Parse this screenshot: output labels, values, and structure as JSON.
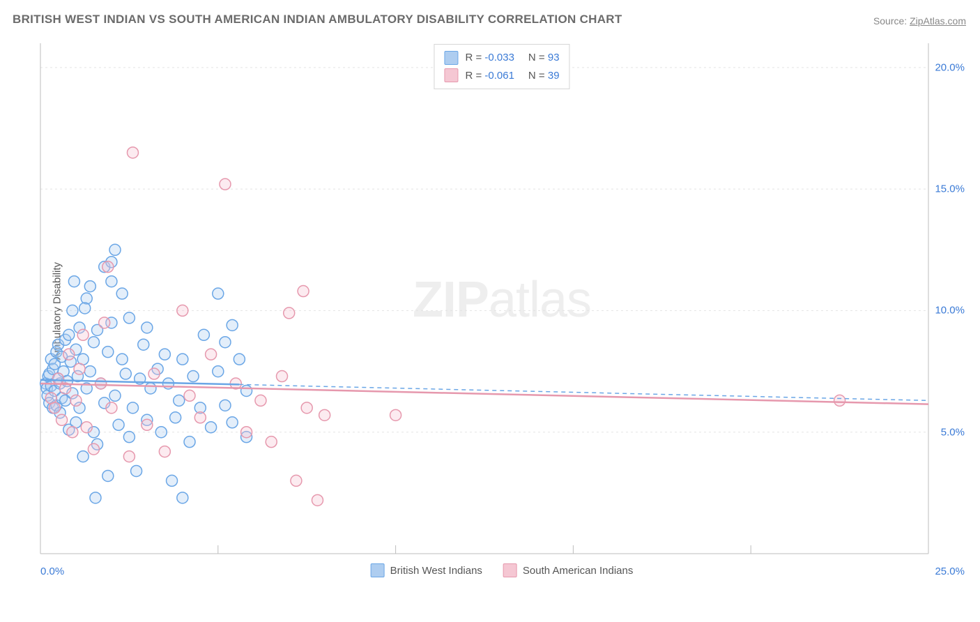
{
  "title": "BRITISH WEST INDIAN VS SOUTH AMERICAN INDIAN AMBULATORY DISABILITY CORRELATION CHART",
  "source_label": "Source:",
  "source_name": "ZipAtlas.com",
  "y_axis_label": "Ambulatory Disability",
  "watermark_bold": "ZIP",
  "watermark_rest": "atlas",
  "chart": {
    "type": "scatter",
    "xlim": [
      0,
      25
    ],
    "ylim": [
      0,
      21
    ],
    "x_ticks": [
      0,
      5,
      10,
      15,
      20,
      25
    ],
    "x_tick_labels": [
      "0.0%",
      "",
      "",
      "",
      "",
      "25.0%"
    ],
    "y_ticks": [
      5,
      10,
      15,
      20
    ],
    "y_tick_labels": [
      "5.0%",
      "10.0%",
      "15.0%",
      "20.0%"
    ],
    "grid_color": "#e4e4e4",
    "axis_color": "#bdbdbd",
    "marker_radius": 8,
    "marker_stroke_width": 1.5,
    "marker_fill_opacity": 0.35,
    "series": [
      {
        "name": "British West Indians",
        "color": "#6aa6e6",
        "fill": "#aecdf0",
        "R": "-0.033",
        "N": "93",
        "trend": {
          "y0": 7.15,
          "y1": 6.3,
          "solid_until_x": 5.6
        },
        "points": [
          [
            0.15,
            7.0
          ],
          [
            0.18,
            6.8
          ],
          [
            0.2,
            6.5
          ],
          [
            0.22,
            7.3
          ],
          [
            0.25,
            6.2
          ],
          [
            0.25,
            7.4
          ],
          [
            0.3,
            6.9
          ],
          [
            0.3,
            8.0
          ],
          [
            0.35,
            7.6
          ],
          [
            0.35,
            6.0
          ],
          [
            0.4,
            6.7
          ],
          [
            0.4,
            7.8
          ],
          [
            0.45,
            8.3
          ],
          [
            0.45,
            6.1
          ],
          [
            0.5,
            7.2
          ],
          [
            0.5,
            8.6
          ],
          [
            0.55,
            5.8
          ],
          [
            0.55,
            7.0
          ],
          [
            0.6,
            6.4
          ],
          [
            0.6,
            8.1
          ],
          [
            0.65,
            7.5
          ],
          [
            0.7,
            8.8
          ],
          [
            0.7,
            6.3
          ],
          [
            0.75,
            7.1
          ],
          [
            0.8,
            5.1
          ],
          [
            0.8,
            9.0
          ],
          [
            0.85,
            7.9
          ],
          [
            0.9,
            6.6
          ],
          [
            0.9,
            10.0
          ],
          [
            1.0,
            8.4
          ],
          [
            1.0,
            5.4
          ],
          [
            1.05,
            7.3
          ],
          [
            1.1,
            9.3
          ],
          [
            1.1,
            6.0
          ],
          [
            1.2,
            8.0
          ],
          [
            1.2,
            4.0
          ],
          [
            1.3,
            10.5
          ],
          [
            1.3,
            6.8
          ],
          [
            1.4,
            11.0
          ],
          [
            1.4,
            7.5
          ],
          [
            1.5,
            5.0
          ],
          [
            1.5,
            8.7
          ],
          [
            1.6,
            9.2
          ],
          [
            1.6,
            4.5
          ],
          [
            1.7,
            7.0
          ],
          [
            1.8,
            6.2
          ],
          [
            1.8,
            11.8
          ],
          [
            1.9,
            8.3
          ],
          [
            1.9,
            3.2
          ],
          [
            2.0,
            12.0
          ],
          [
            2.0,
            9.5
          ],
          [
            2.1,
            6.5
          ],
          [
            2.1,
            12.5
          ],
          [
            2.2,
            5.3
          ],
          [
            2.3,
            8.0
          ],
          [
            2.3,
            10.7
          ],
          [
            2.4,
            7.4
          ],
          [
            2.5,
            9.7
          ],
          [
            2.5,
            4.8
          ],
          [
            2.6,
            6.0
          ],
          [
            2.7,
            3.4
          ],
          [
            2.8,
            7.2
          ],
          [
            2.9,
            8.6
          ],
          [
            3.0,
            5.5
          ],
          [
            3.0,
            9.3
          ],
          [
            3.1,
            6.8
          ],
          [
            3.3,
            7.6
          ],
          [
            3.4,
            5.0
          ],
          [
            3.5,
            8.2
          ],
          [
            3.6,
            7.0
          ],
          [
            3.8,
            5.6
          ],
          [
            3.9,
            6.3
          ],
          [
            4.0,
            2.3
          ],
          [
            4.0,
            8.0
          ],
          [
            4.2,
            4.6
          ],
          [
            4.3,
            7.3
          ],
          [
            4.5,
            6.0
          ],
          [
            4.6,
            9.0
          ],
          [
            4.8,
            5.2
          ],
          [
            5.0,
            10.7
          ],
          [
            5.0,
            7.5
          ],
          [
            5.2,
            8.7
          ],
          [
            5.2,
            6.1
          ],
          [
            5.4,
            9.4
          ],
          [
            5.4,
            5.4
          ],
          [
            5.6,
            8.0
          ],
          [
            5.8,
            4.8
          ],
          [
            5.8,
            6.7
          ],
          [
            1.55,
            2.3
          ],
          [
            1.25,
            10.1
          ],
          [
            0.95,
            11.2
          ],
          [
            3.7,
            3.0
          ],
          [
            2.0,
            11.2
          ]
        ]
      },
      {
        "name": "South American Indians",
        "color": "#e698ad",
        "fill": "#f5c7d3",
        "R": "-0.061",
        "N": "39",
        "trend": {
          "y0": 7.0,
          "y1": 6.15,
          "solid_until_x": 25
        },
        "points": [
          [
            0.3,
            6.4
          ],
          [
            0.4,
            6.0
          ],
          [
            0.5,
            7.2
          ],
          [
            0.6,
            5.5
          ],
          [
            0.7,
            6.8
          ],
          [
            0.8,
            8.2
          ],
          [
            0.9,
            5.0
          ],
          [
            1.0,
            6.3
          ],
          [
            1.1,
            7.6
          ],
          [
            1.2,
            9.0
          ],
          [
            1.3,
            5.2
          ],
          [
            1.5,
            4.3
          ],
          [
            1.7,
            7.0
          ],
          [
            1.8,
            9.5
          ],
          [
            1.9,
            11.8
          ],
          [
            2.0,
            6.0
          ],
          [
            2.5,
            4.0
          ],
          [
            2.6,
            16.5
          ],
          [
            3.0,
            5.3
          ],
          [
            3.2,
            7.4
          ],
          [
            3.5,
            4.2
          ],
          [
            4.0,
            10.0
          ],
          [
            4.2,
            6.5
          ],
          [
            4.5,
            5.6
          ],
          [
            4.8,
            8.2
          ],
          [
            5.2,
            15.2
          ],
          [
            5.5,
            7.0
          ],
          [
            5.8,
            5.0
          ],
          [
            6.2,
            6.3
          ],
          [
            6.5,
            4.6
          ],
          [
            7.0,
            9.9
          ],
          [
            7.2,
            3.0
          ],
          [
            7.4,
            10.8
          ],
          [
            7.5,
            6.0
          ],
          [
            7.8,
            2.2
          ],
          [
            8.0,
            5.7
          ],
          [
            10.0,
            5.7
          ],
          [
            22.5,
            6.3
          ],
          [
            6.8,
            7.3
          ]
        ]
      }
    ]
  }
}
